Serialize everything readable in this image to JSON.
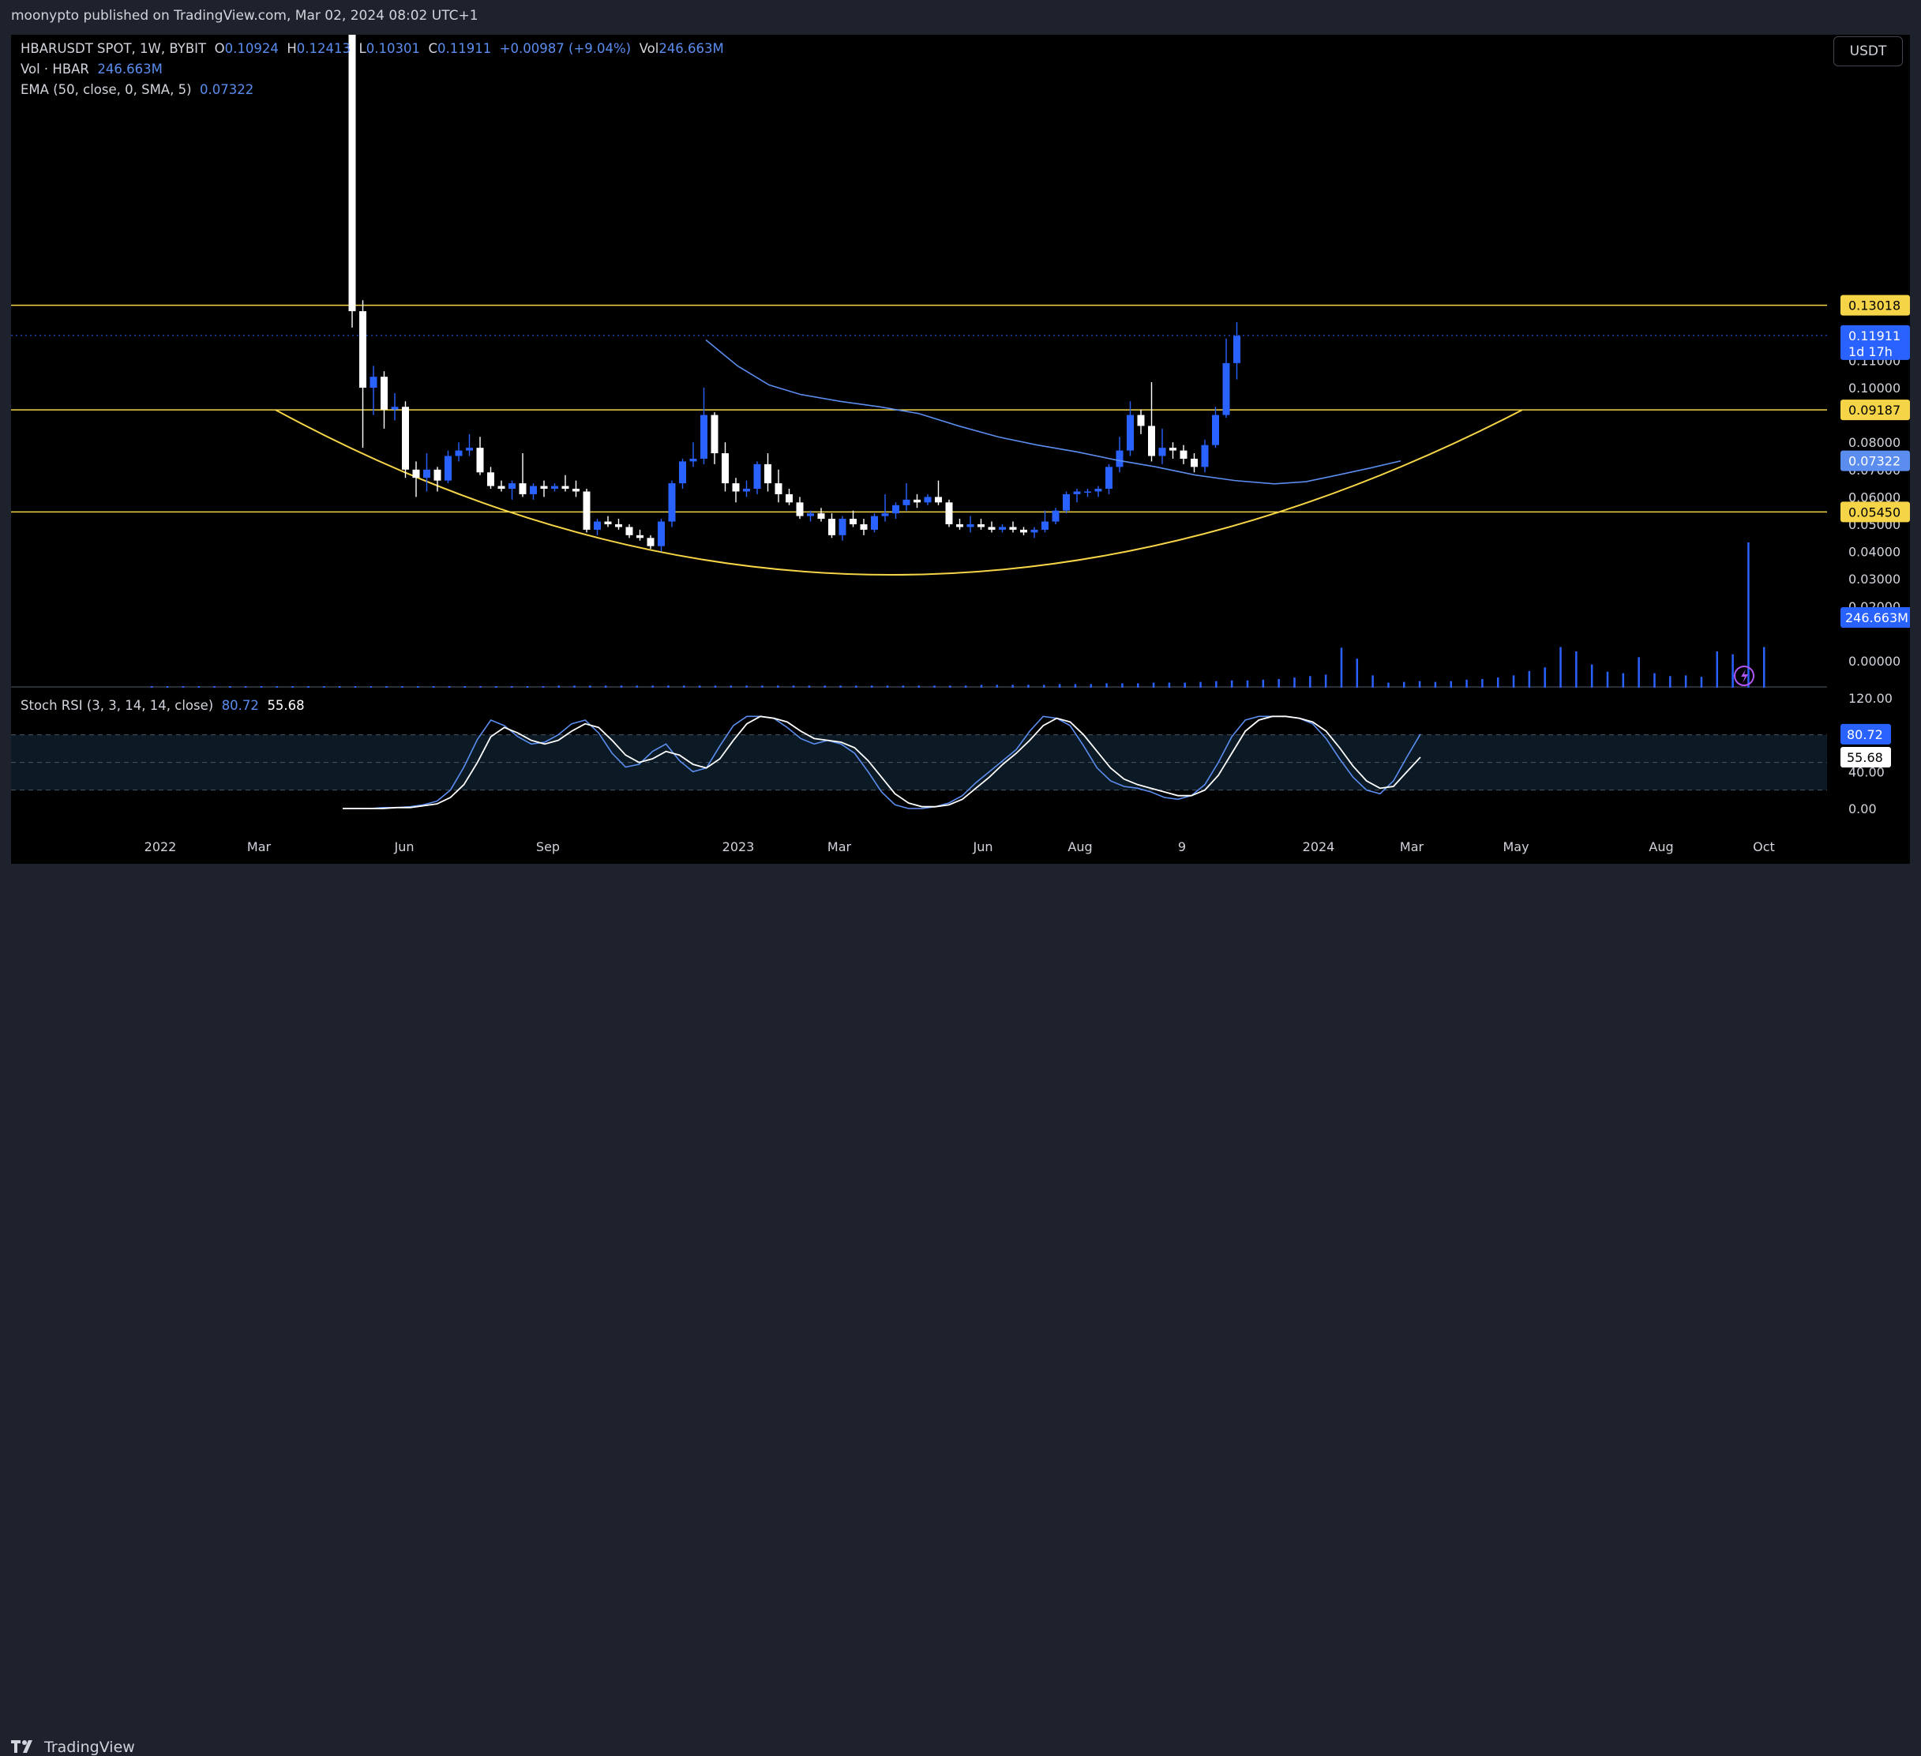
{
  "header": {
    "text": "moonypto published on TradingView.com, Mar 02, 2024 08:02 UTC+1"
  },
  "brand": {
    "name": "TradingView"
  },
  "currency_button": "USDT",
  "legend": {
    "symbol": "HBARUSDT SPOT, 1W, BYBIT",
    "o_label": "O",
    "o": "0.10924",
    "h_label": "H",
    "h": "0.12413",
    "l_label": "L",
    "l": "0.10301",
    "c_label": "C",
    "c": "0.11911",
    "change": "+0.00987 (+9.04%)",
    "vol_label": "Vol",
    "vol": "246.663M",
    "volume_label": "Vol · HBAR",
    "volume_value": "246.663M",
    "ema_label": "EMA (50, close, 0, SMA, 5)",
    "ema_value": "0.07322",
    "stoch_label": "Stoch RSI (3, 3, 14, 14, close)",
    "stoch_k": "80.72",
    "stoch_d": "55.68"
  },
  "colors": {
    "up": "#2962ff",
    "down": "#ffffff",
    "ema": "#5b8def",
    "level": "#f5d547",
    "k_line": "#5b8def",
    "d_line": "#ffffff",
    "background": "#000000"
  },
  "chart_data": {
    "type": "candlestick",
    "price_axis": {
      "ticks": [
        "0.11000",
        "0.10000",
        "0.08000",
        "0.07000",
        "0.06000",
        "0.05000",
        "0.04000",
        "0.03000",
        "0.02000",
        "0.00000"
      ]
    },
    "time_axis": {
      "labels": [
        "2022",
        "Mar",
        "Jun",
        "Sep",
        "2023",
        "Mar",
        "Jun",
        "Aug",
        "9",
        "2024",
        "Mar",
        "May",
        "Aug",
        "Oct"
      ]
    },
    "price_badges": [
      {
        "label": "0.13018",
        "value": 0.13018,
        "style": "level"
      },
      {
        "label": "0.11911",
        "sub": "1d 17h",
        "value": 0.11911,
        "style": "last"
      },
      {
        "label": "0.09187",
        "value": 0.09187,
        "style": "level"
      },
      {
        "label": "0.07322",
        "value": 0.07322,
        "style": "ema"
      },
      {
        "label": "0.05450",
        "value": 0.0545,
        "style": "level"
      }
    ],
    "volume_badge": "246.663M",
    "horizontal_levels": [
      0.13018,
      0.09187,
      0.0545
    ],
    "candles": [
      [
        0.265,
        0.275,
        0.122,
        0.128
      ],
      [
        0.128,
        0.132,
        0.078,
        0.1
      ],
      [
        0.1,
        0.108,
        0.09,
        0.104
      ],
      [
        0.104,
        0.106,
        0.085,
        0.092
      ],
      [
        0.092,
        0.098,
        0.088,
        0.093
      ],
      [
        0.093,
        0.095,
        0.067,
        0.07
      ],
      [
        0.07,
        0.073,
        0.06,
        0.067
      ],
      [
        0.067,
        0.076,
        0.062,
        0.07
      ],
      [
        0.07,
        0.071,
        0.062,
        0.066
      ],
      [
        0.066,
        0.077,
        0.065,
        0.075
      ],
      [
        0.075,
        0.08,
        0.073,
        0.077
      ],
      [
        0.077,
        0.083,
        0.075,
        0.078
      ],
      [
        0.078,
        0.082,
        0.068,
        0.069
      ],
      [
        0.069,
        0.071,
        0.063,
        0.064
      ],
      [
        0.064,
        0.066,
        0.062,
        0.063
      ],
      [
        0.063,
        0.066,
        0.059,
        0.065
      ],
      [
        0.065,
        0.076,
        0.06,
        0.061
      ],
      [
        0.061,
        0.065,
        0.059,
        0.064
      ],
      [
        0.064,
        0.066,
        0.06,
        0.063
      ],
      [
        0.063,
        0.065,
        0.062,
        0.064
      ],
      [
        0.064,
        0.068,
        0.062,
        0.063
      ],
      [
        0.063,
        0.066,
        0.06,
        0.062
      ],
      [
        0.062,
        0.063,
        0.047,
        0.048
      ],
      [
        0.048,
        0.052,
        0.046,
        0.051
      ],
      [
        0.051,
        0.053,
        0.049,
        0.05
      ],
      [
        0.05,
        0.052,
        0.048,
        0.049
      ],
      [
        0.049,
        0.05,
        0.045,
        0.046
      ],
      [
        0.046,
        0.048,
        0.044,
        0.045
      ],
      [
        0.045,
        0.046,
        0.041,
        0.042
      ],
      [
        0.042,
        0.052,
        0.04,
        0.051
      ],
      [
        0.051,
        0.066,
        0.049,
        0.065
      ],
      [
        0.065,
        0.074,
        0.063,
        0.073
      ],
      [
        0.073,
        0.08,
        0.071,
        0.074
      ],
      [
        0.074,
        0.1,
        0.072,
        0.09
      ],
      [
        0.09,
        0.091,
        0.072,
        0.076
      ],
      [
        0.076,
        0.08,
        0.062,
        0.065
      ],
      [
        0.065,
        0.067,
        0.058,
        0.062
      ],
      [
        0.062,
        0.066,
        0.06,
        0.063
      ],
      [
        0.063,
        0.073,
        0.061,
        0.072
      ],
      [
        0.072,
        0.076,
        0.062,
        0.065
      ],
      [
        0.065,
        0.07,
        0.058,
        0.061
      ],
      [
        0.061,
        0.063,
        0.057,
        0.058
      ],
      [
        0.058,
        0.06,
        0.052,
        0.053
      ],
      [
        0.053,
        0.055,
        0.051,
        0.054
      ],
      [
        0.054,
        0.056,
        0.051,
        0.052
      ],
      [
        0.052,
        0.054,
        0.045,
        0.046
      ],
      [
        0.046,
        0.053,
        0.044,
        0.052
      ],
      [
        0.052,
        0.055,
        0.049,
        0.05
      ],
      [
        0.05,
        0.052,
        0.046,
        0.048
      ],
      [
        0.048,
        0.054,
        0.047,
        0.053
      ],
      [
        0.053,
        0.061,
        0.051,
        0.054
      ],
      [
        0.054,
        0.058,
        0.052,
        0.057
      ],
      [
        0.057,
        0.065,
        0.055,
        0.059
      ],
      [
        0.059,
        0.061,
        0.056,
        0.058
      ],
      [
        0.058,
        0.061,
        0.057,
        0.06
      ],
      [
        0.06,
        0.066,
        0.057,
        0.058
      ],
      [
        0.058,
        0.059,
        0.049,
        0.05
      ],
      [
        0.05,
        0.052,
        0.048,
        0.049
      ],
      [
        0.049,
        0.053,
        0.047,
        0.05
      ],
      [
        0.05,
        0.052,
        0.048,
        0.049
      ],
      [
        0.049,
        0.051,
        0.047,
        0.048
      ],
      [
        0.048,
        0.05,
        0.047,
        0.049
      ],
      [
        0.049,
        0.051,
        0.047,
        0.048
      ],
      [
        0.048,
        0.049,
        0.046,
        0.047
      ],
      [
        0.047,
        0.049,
        0.045,
        0.048
      ],
      [
        0.048,
        0.055,
        0.047,
        0.051
      ],
      [
        0.051,
        0.056,
        0.05,
        0.055
      ],
      [
        0.055,
        0.062,
        0.054,
        0.061
      ],
      [
        0.061,
        0.063,
        0.058,
        0.062
      ],
      [
        0.062,
        0.063,
        0.06,
        0.062
      ],
      [
        0.062,
        0.064,
        0.06,
        0.063
      ],
      [
        0.063,
        0.072,
        0.061,
        0.071
      ],
      [
        0.071,
        0.082,
        0.069,
        0.077
      ],
      [
        0.077,
        0.095,
        0.075,
        0.09
      ],
      [
        0.09,
        0.092,
        0.083,
        0.086
      ],
      [
        0.086,
        0.102,
        0.073,
        0.075
      ],
      [
        0.075,
        0.085,
        0.072,
        0.078
      ],
      [
        0.078,
        0.08,
        0.074,
        0.077
      ],
      [
        0.077,
        0.079,
        0.072,
        0.074
      ],
      [
        0.074,
        0.076,
        0.069,
        0.071
      ],
      [
        0.071,
        0.081,
        0.069,
        0.079
      ],
      [
        0.079,
        0.093,
        0.078,
        0.09
      ],
      [
        0.09,
        0.118,
        0.089,
        0.109
      ],
      [
        0.109,
        0.124,
        0.103,
        0.119
      ]
    ],
    "volume_values": [
      2,
      2,
      2,
      2,
      2,
      2,
      2,
      2,
      2,
      2,
      2,
      2,
      2,
      2,
      2,
      2,
      2,
      2,
      2,
      2,
      2,
      2,
      2,
      2,
      2,
      2,
      3,
      3,
      3,
      3,
      3,
      3,
      3,
      3,
      3,
      3,
      3,
      3,
      3,
      3,
      3,
      3,
      3,
      3,
      3,
      3,
      3,
      3,
      3,
      3,
      3,
      3,
      3,
      4,
      4,
      4,
      4,
      4,
      5,
      5,
      5,
      6,
      6,
      6,
      7,
      7,
      7,
      8,
      9,
      10,
      10,
      11,
      12,
      14,
      16,
      18,
      55,
      40,
      17,
      7,
      8,
      9,
      8,
      9,
      11,
      12,
      14,
      17,
      23,
      28,
      56,
      50,
      32,
      22,
      20,
      42,
      20,
      16,
      17,
      15,
      50,
      46,
      200,
      56
    ],
    "volume_range": [
      0,
      250
    ],
    "ema": [
      [
        0.117,
        118
      ],
      [
        0.105,
        124
      ],
      [
        0.097,
        130
      ],
      [
        0.093,
        134
      ],
      [
        0.089,
        140
      ],
      [
        0.087,
        146
      ],
      [
        0.084,
        152
      ],
      [
        0.081,
        160
      ],
      [
        0.078,
        168
      ],
      [
        0.075,
        176
      ],
      [
        0.073,
        184
      ],
      [
        0.071,
        190
      ],
      [
        0.069,
        196
      ],
      [
        0.067,
        202
      ],
      [
        0.066,
        206
      ],
      [
        0.065,
        210
      ],
      [
        0.066,
        214
      ],
      [
        0.068,
        220
      ],
      [
        0.071,
        226
      ],
      [
        0.073,
        232
      ]
    ],
    "curve": {
      "type": "rounding-bottom",
      "apex": 0.0315
    },
    "stoch_rsi": {
      "k": [
        0,
        0,
        0,
        1,
        1,
        2,
        4,
        8,
        20,
        45,
        75,
        96,
        90,
        78,
        70,
        72,
        80,
        92,
        96,
        82,
        60,
        45,
        48,
        62,
        70,
        52,
        40,
        44,
        68,
        90,
        100,
        100,
        98,
        88,
        76,
        70,
        74,
        70,
        60,
        40,
        18,
        4,
        0,
        0,
        2,
        6,
        14,
        28,
        40,
        52,
        64,
        84,
        100,
        98,
        90,
        68,
        44,
        30,
        24,
        22,
        18,
        12,
        10,
        14,
        26,
        50,
        78,
        96,
        100,
        100,
        100,
        98,
        92,
        76,
        54,
        34,
        20,
        16,
        30,
        56,
        80.72
      ],
      "d": [
        0,
        0,
        0,
        0,
        1,
        1,
        3,
        5,
        12,
        26,
        50,
        78,
        88,
        82,
        74,
        70,
        74,
        84,
        92,
        88,
        74,
        58,
        50,
        54,
        62,
        58,
        48,
        44,
        54,
        74,
        92,
        100,
        98,
        94,
        84,
        76,
        74,
        72,
        66,
        52,
        34,
        16,
        6,
        2,
        2,
        4,
        10,
        22,
        34,
        48,
        60,
        74,
        90,
        98,
        94,
        80,
        62,
        44,
        32,
        26,
        22,
        18,
        14,
        14,
        20,
        36,
        60,
        84,
        96,
        100,
        100,
        98,
        94,
        84,
        66,
        46,
        30,
        22,
        24,
        40,
        55.68
      ],
      "range": [
        0,
        120
      ],
      "upper": 80,
      "mid": 50,
      "lower": 20,
      "axis_labels": [
        "120.00",
        "40.00",
        "0.00"
      ],
      "badge_k": "80.72",
      "badge_d": "55.68"
    }
  }
}
